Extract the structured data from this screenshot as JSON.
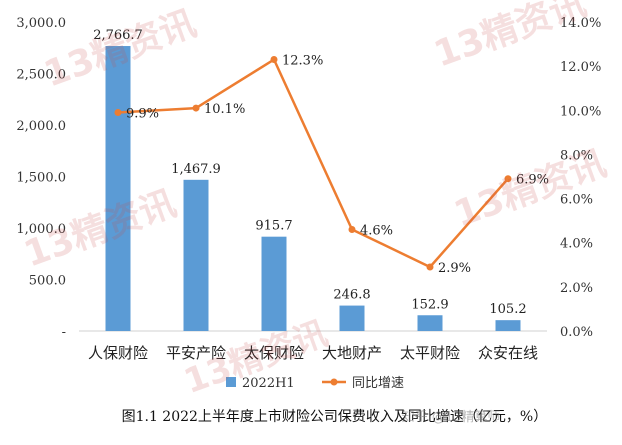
{
  "chart_data": {
    "type": "bar+line",
    "categories": [
      "人保财险",
      "平安产险",
      "太保财险",
      "大地财产",
      "太平财险",
      "众安在线"
    ],
    "series": [
      {
        "name": "2022H1",
        "type": "bar",
        "axis": "left",
        "color": "#5b9bd5",
        "values": [
          2766.7,
          1467.9,
          915.7,
          246.8,
          152.9,
          105.2
        ],
        "labels": [
          "2,766.7",
          "1,467.9",
          "915.7",
          "246.8",
          "152.9",
          "105.2"
        ]
      },
      {
        "name": "同比增速",
        "type": "line",
        "axis": "right",
        "color": "#ed7d31",
        "values": [
          9.9,
          10.1,
          12.3,
          4.6,
          2.9,
          6.9
        ],
        "labels": [
          "9.9%",
          "10.1%",
          "12.3%",
          "4.6%",
          "2.9%",
          "6.9%"
        ]
      }
    ],
    "y_left": {
      "min": 0,
      "max": 3000,
      "ticks": [
        0,
        500,
        1000,
        1500,
        2000,
        2500,
        3000
      ],
      "tick_labels": [
        "-",
        "500.0",
        "1,000.0",
        "1,500.0",
        "2,000.0",
        "2,500.0",
        "3,000.0"
      ]
    },
    "y_right": {
      "min": 0,
      "max": 14,
      "ticks": [
        0,
        2,
        4,
        6,
        8,
        10,
        12,
        14
      ],
      "tick_labels": [
        "0.0%",
        "2.0%",
        "4.0%",
        "6.0%",
        "8.0%",
        "10.0%",
        "12.0%",
        "14.0%"
      ]
    },
    "legend": {
      "position": "bottom",
      "items": [
        "2022H1",
        "同比增速"
      ]
    },
    "grid": false
  },
  "caption": "图1.1  2022上半年度上市财险公司保费收入及同比增速（亿元，%）",
  "watermark": {
    "text": "13精资讯",
    "credit": "知乎 @13精算师"
  }
}
